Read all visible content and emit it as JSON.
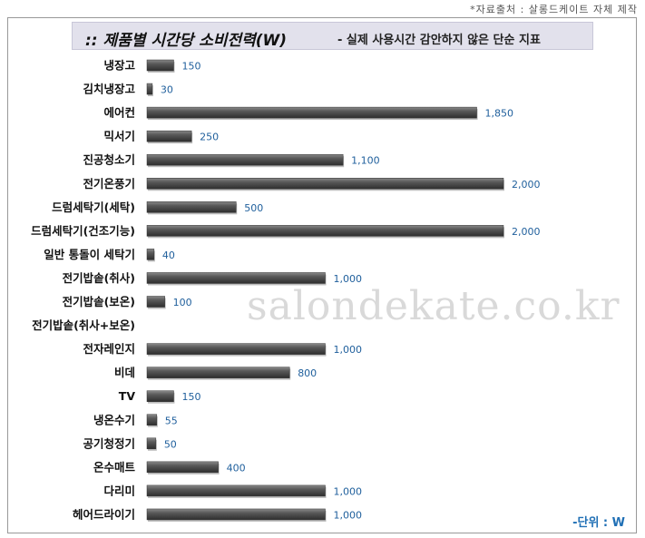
{
  "source_note": "*자료출처 : 살롱드케이트 자체 제작",
  "title": {
    "main": ":: 제품별 시간당 소비전력(W)",
    "sub": "- 실제 사용시간 감안하지 않은 단순 지표"
  },
  "unit_label": "-단위 : W",
  "watermark": "salondekate.co.kr",
  "colors": {
    "bar": "#4a4a4a",
    "value_label": "#1f5f9c",
    "title_bg": "#e2e1ec"
  },
  "chart_data": {
    "type": "bar",
    "orientation": "horizontal",
    "title": ":: 제품별 시간당 소비전력(W)",
    "subtitle": "- 실제 사용시간 감안하지 않은 단순 지표",
    "xlabel": "",
    "ylabel": "",
    "unit": "W",
    "grid": false,
    "categories": [
      "냉장고",
      "김치냉장고",
      "에어컨",
      "믹서기",
      "진공청소기",
      "전기온풍기",
      "드럼세탁기(세탁)",
      "드럼세탁기(건조기능)",
      "일반 통돌이 세탁기",
      "전기밥솥(취사)",
      "전기밥솥(보온)",
      "전기밥솥(취사+보온)",
      "전자레인지",
      "비데",
      "TV",
      "냉온수기",
      "공기청정기",
      "온수매트",
      "다리미",
      "헤어드라이기"
    ],
    "values": [
      150,
      30,
      1850,
      250,
      1100,
      2000,
      500,
      2000,
      40,
      1000,
      100,
      null,
      1000,
      800,
      150,
      55,
      50,
      400,
      1000,
      1000
    ],
    "value_labels": [
      "150",
      "30",
      "1,850",
      "250",
      "1,100",
      "2,000",
      "500",
      "2,000",
      "40",
      "1,000",
      "100",
      "",
      "1,000",
      "800",
      "150",
      "55",
      "50",
      "400",
      "1,000",
      "1,000"
    ],
    "xlim": [
      0,
      2000
    ]
  }
}
